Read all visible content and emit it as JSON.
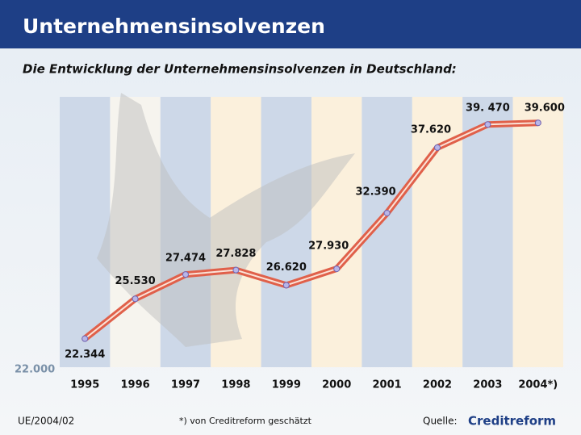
{
  "chart_data": {
    "type": "line",
    "title": "Unternehmensinsolvenzen",
    "subtitle": "Die Entwicklung der Unternehmensinsolvenzen in Deutschland:",
    "categories": [
      "1995",
      "1996",
      "1997",
      "1998",
      "1999",
      "2000",
      "2001",
      "2002",
      "2003",
      "2004*)"
    ],
    "values": [
      22344,
      25530,
      27474,
      27828,
      26620,
      27930,
      32390,
      37620,
      39470,
      39600
    ],
    "value_labels": [
      "22.344",
      "25.530",
      "27.474",
      "27.828",
      "26.620",
      "27.930",
      "32.390",
      "37.620",
      "39. 470",
      "39.600"
    ],
    "color": "#e0604a",
    "ylim": [
      22000,
      42000
    ],
    "yticks": [
      {
        "value": 22000,
        "label": "22.000"
      }
    ],
    "doc_id": "UE/2004/02",
    "footnote": "*) von Creditreform geschätzt",
    "source_label": "Quelle:",
    "source": "Creditreform"
  }
}
